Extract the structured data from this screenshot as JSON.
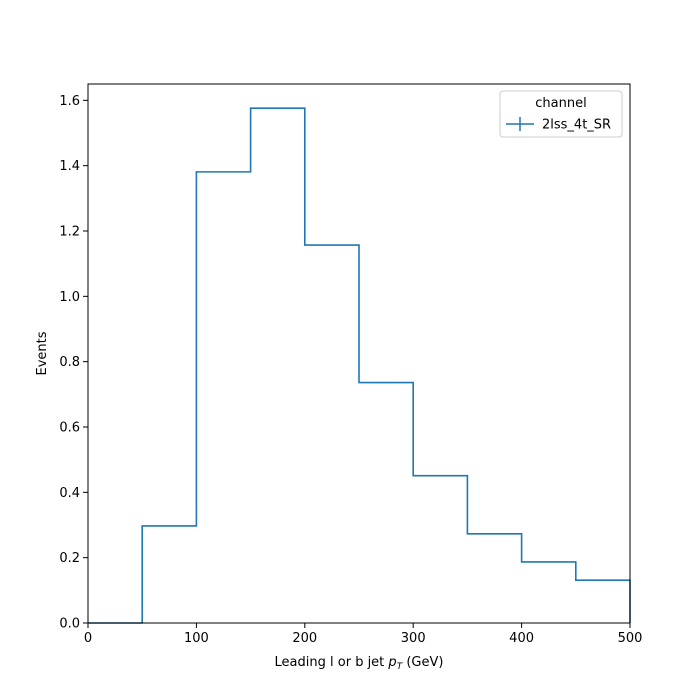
{
  "chart_data": {
    "type": "step",
    "title": "",
    "xlabel": "Leading l or b jet ",
    "xlabel_math": "p",
    "xlabel_math_sub": "T",
    "xlabel_unit": " (GeV)",
    "ylabel": "Events",
    "xlim": [
      0,
      500
    ],
    "ylim": [
      0,
      1.65
    ],
    "xticks": [
      "0",
      "100",
      "200",
      "300",
      "400",
      "500"
    ],
    "yticks": [
      "0.0",
      "0.2",
      "0.4",
      "0.6",
      "0.8",
      "1.0",
      "1.2",
      "1.4",
      "1.6"
    ],
    "bin_edges": [
      0,
      50,
      100,
      150,
      200,
      250,
      300,
      350,
      400,
      450,
      500
    ],
    "series": [
      {
        "name": "2lss_4t_SR",
        "color": "#1f77b4",
        "values": [
          0.0,
          0.297,
          1.381,
          1.576,
          1.157,
          0.736,
          0.451,
          0.273,
          0.187,
          0.131
        ]
      }
    ],
    "legend": {
      "title": "channel",
      "placement": "upper-right"
    },
    "grid": false
  }
}
